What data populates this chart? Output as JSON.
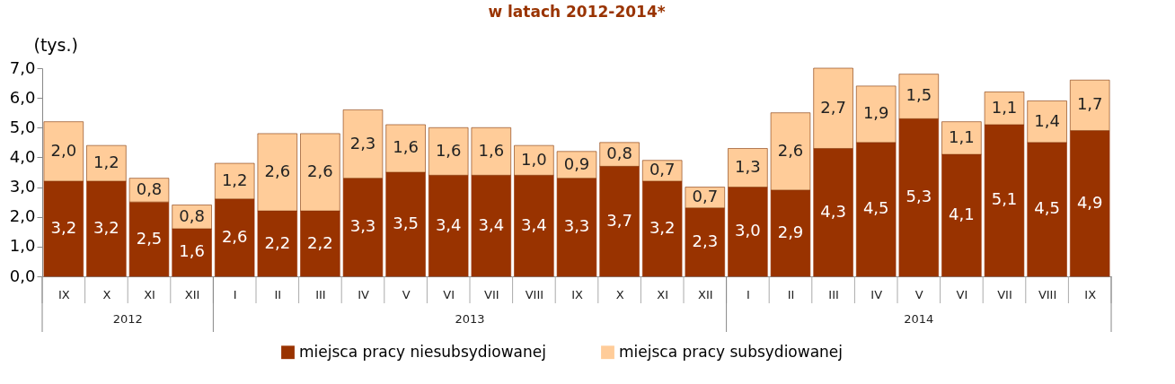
{
  "chart_data": {
    "type": "bar",
    "title": "w latach 2012-2014*",
    "ylabel": "(tys.)",
    "stacked": true,
    "categories": [
      "IX",
      "X",
      "XI",
      "XII",
      "I",
      "II",
      "III",
      "IV",
      "V",
      "VI",
      "VII",
      "VIII",
      "IX",
      "X",
      "XI",
      "XII",
      "I",
      "II",
      "III",
      "IV",
      "V",
      "VI",
      "VII",
      "VIII",
      "IX"
    ],
    "series": [
      {
        "name": "miejsca pracy niesubsydiowanej",
        "color": "#993300",
        "values": [
          3.2,
          3.2,
          2.5,
          1.6,
          2.6,
          2.2,
          2.2,
          3.3,
          3.5,
          3.4,
          3.4,
          3.4,
          3.3,
          3.7,
          3.2,
          2.3,
          3.0,
          2.9,
          4.3,
          4.5,
          5.3,
          4.1,
          5.1,
          4.5,
          4.9
        ],
        "value_labels": [
          "3,2",
          "3,2",
          "2,5",
          "1,6",
          "2,6",
          "2,2",
          "2,2",
          "3,3",
          "3,5",
          "3,4",
          "3,4",
          "3,4",
          "3,3",
          "3,7",
          "3,2",
          "2,3",
          "3,0",
          "2,9",
          "4,3",
          "4,5",
          "5,3",
          "4,1",
          "5,1",
          "4,5",
          "4,9"
        ]
      },
      {
        "name": "miejsca pracy subsydiowanej",
        "color": "#ffcc99",
        "values": [
          2.0,
          1.2,
          0.8,
          0.8,
          1.2,
          2.6,
          2.6,
          2.3,
          1.6,
          1.6,
          1.6,
          1.0,
          0.9,
          0.8,
          0.7,
          0.7,
          1.3,
          2.6,
          2.7,
          1.9,
          1.5,
          1.1,
          1.1,
          1.4,
          1.7
        ],
        "value_labels": [
          "2,0",
          "1,2",
          "0,8",
          "0,8",
          "1,2",
          "2,6",
          "2,6",
          "2,3",
          "1,6",
          "1,6",
          "1,6",
          "1,0",
          "0,9",
          "0,8",
          "0,7",
          "0,7",
          "1,3",
          "2,6",
          "2,7",
          "1,9",
          "1,5",
          "1,1",
          "1,1",
          "1,4",
          "1,7"
        ]
      }
    ],
    "ylim": [
      0,
      7
    ],
    "yticks": [
      {
        "value": 0,
        "label": "0,0"
      },
      {
        "value": 1,
        "label": "1,0"
      },
      {
        "value": 2,
        "label": "2,0"
      },
      {
        "value": 3,
        "label": "3,0"
      },
      {
        "value": 4,
        "label": "4,0"
      },
      {
        "value": 5,
        "label": "5,0"
      },
      {
        "value": 6,
        "label": "6,0"
      },
      {
        "value": 7,
        "label": "7,0"
      }
    ],
    "annotations": [
      "2012",
      "2013",
      "2014"
    ],
    "grid": false,
    "legend": "bottom"
  }
}
